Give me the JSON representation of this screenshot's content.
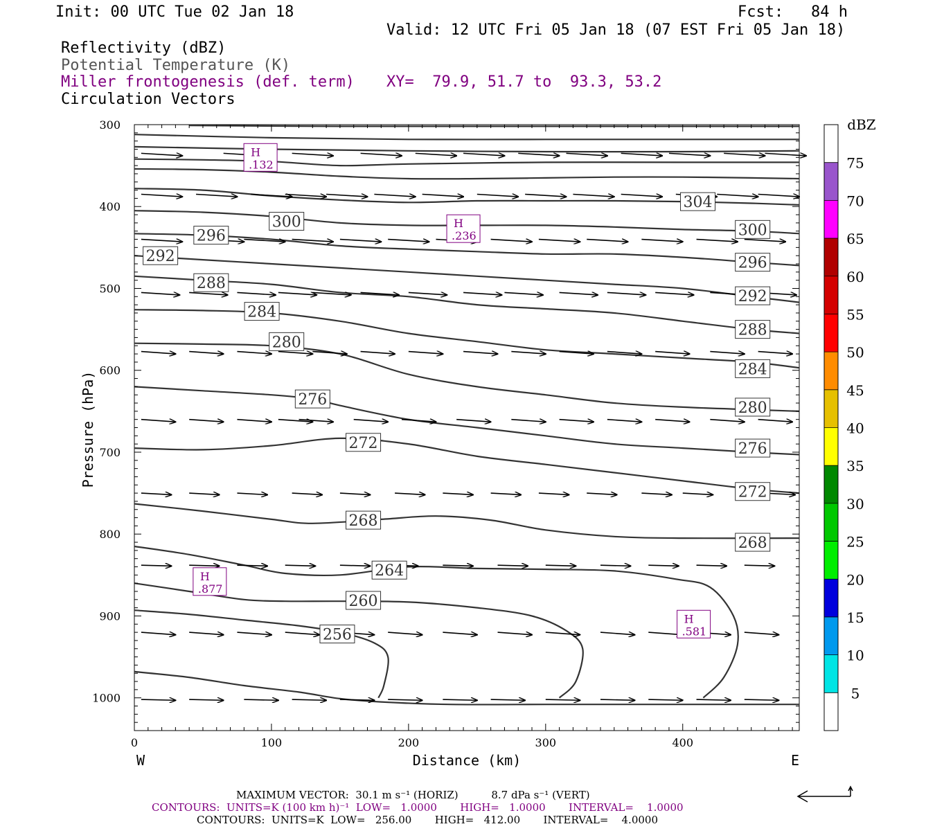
{
  "header": {
    "init": "Init: 00 UTC Tue 02 Jan 18",
    "fcst": "Fcst:   84 h",
    "valid": "Valid: 12 UTC Fri 05 Jan 18 (07 EST Fri 05 Jan 18)",
    "fields": [
      {
        "label": "Reflectivity (dBZ)",
        "color": "#000000"
      },
      {
        "label": "Potential Temperature (K)",
        "color": "#555555"
      },
      {
        "label": "Miller frontogenesis (def. term)",
        "color": "#800080"
      },
      {
        "label": "Circulation Vectors",
        "color": "#000000"
      }
    ],
    "xy": "XY=  79.9, 51.7 to  93.3, 53.2"
  },
  "footer": {
    "max_vector": "MAXIMUM VECTOR:  30.1 m s⁻¹ (HORIZ)          8.7 dPa s⁻¹ (VERT)",
    "contours_fronto": "CONTOURS:  UNITS=K (100 km h)⁻¹  LOW=   1.0000       HIGH=   1.0000       INTERVAL=    1.0000",
    "contours_theta": "CONTOURS:  UNITS=K  LOW=   256.00       HIGH=   412.00       INTERVAL=    4.0000"
  },
  "chart_data": {
    "type": "cross-section",
    "xlabel": "Distance (km)",
    "ylabel": "Pressure (hPa)",
    "xlim": [
      0,
      485
    ],
    "ylim": [
      1040,
      300
    ],
    "x_ticks": [
      0,
      100,
      200,
      300,
      400
    ],
    "y_ticks": [
      300,
      400,
      500,
      600,
      700,
      800,
      900,
      1000
    ],
    "x_end_labels": {
      "left": "W",
      "right": "E"
    },
    "colorbar": {
      "title": "dBZ",
      "levels": [
        5,
        10,
        15,
        20,
        25,
        30,
        35,
        40,
        45,
        50,
        55,
        60,
        65,
        70,
        75
      ],
      "colors": [
        "#ffffff",
        "#00e5e5",
        "#0099ee",
        "#0000dd",
        "#00ee00",
        "#00c800",
        "#008800",
        "#ffff00",
        "#e6c000",
        "#ff8c00",
        "#ff0000",
        "#d40000",
        "#b00000",
        "#ff00ff",
        "#9955cc",
        "#ffffff"
      ]
    },
    "theta_contours": [
      {
        "level": 256,
        "points": [
          [
            0,
            968
          ],
          [
            40,
            975
          ],
          [
            80,
            985
          ],
          [
            120,
            993
          ],
          [
            150,
            1001
          ],
          [
            180,
            1005
          ],
          [
            230,
            1008
          ],
          [
            300,
            1008
          ],
          [
            350,
            1008
          ],
          [
            410,
            1008
          ],
          [
            485,
            1008
          ]
        ],
        "labels": []
      },
      {
        "level": 256,
        "points": [
          [
            0,
            893
          ],
          [
            40,
            898
          ],
          [
            80,
            905
          ],
          [
            120,
            912
          ],
          [
            150,
            920
          ],
          [
            175,
            933
          ],
          [
            185,
            950
          ],
          [
            182,
            985
          ],
          [
            178,
            1000
          ]
        ],
        "labels": [
          [
            148,
            922
          ]
        ]
      },
      {
        "level": 260,
        "points": [
          [
            0,
            860
          ],
          [
            40,
            870
          ],
          [
            80,
            880
          ],
          [
            110,
            882
          ],
          [
            150,
            882
          ],
          [
            200,
            883
          ],
          [
            250,
            890
          ],
          [
            290,
            900
          ],
          [
            315,
            918
          ],
          [
            327,
            940
          ],
          [
            322,
            980
          ],
          [
            310,
            1000
          ]
        ],
        "labels": [
          [
            167,
            881
          ]
        ]
      },
      {
        "level": 264,
        "points": [
          [
            0,
            815
          ],
          [
            40,
            825
          ],
          [
            80,
            838
          ],
          [
            110,
            848
          ],
          [
            150,
            850
          ],
          [
            200,
            840
          ],
          [
            250,
            842
          ],
          [
            300,
            843
          ],
          [
            350,
            845
          ],
          [
            395,
            855
          ],
          [
            420,
            865
          ],
          [
            437,
            900
          ],
          [
            440,
            935
          ],
          [
            430,
            975
          ],
          [
            415,
            1000
          ]
        ],
        "labels": [
          [
            186,
            844
          ]
        ]
      },
      {
        "level": 268,
        "points": [
          [
            0,
            763
          ],
          [
            50,
            772
          ],
          [
            100,
            782
          ],
          [
            130,
            787
          ],
          [
            180,
            782
          ],
          [
            220,
            778
          ],
          [
            260,
            783
          ],
          [
            300,
            795
          ],
          [
            350,
            803
          ],
          [
            400,
            805
          ],
          [
            485,
            805
          ]
        ],
        "labels": [
          [
            167,
            783
          ],
          [
            451,
            810
          ]
        ]
      },
      {
        "level": 272,
        "points": [
          [
            0,
            695
          ],
          [
            50,
            697
          ],
          [
            100,
            692
          ],
          [
            150,
            683
          ],
          [
            200,
            690
          ],
          [
            250,
            705
          ],
          [
            300,
            715
          ],
          [
            350,
            725
          ],
          [
            400,
            735
          ],
          [
            450,
            745
          ],
          [
            485,
            750
          ]
        ],
        "labels": [
          [
            167,
            688
          ],
          [
            451,
            748
          ]
        ]
      },
      {
        "level": 276,
        "points": [
          [
            0,
            620
          ],
          [
            50,
            625
          ],
          [
            100,
            630
          ],
          [
            130,
            635
          ],
          [
            150,
            643
          ],
          [
            200,
            660
          ],
          [
            250,
            670
          ],
          [
            300,
            680
          ],
          [
            350,
            690
          ],
          [
            400,
            695
          ],
          [
            450,
            700
          ],
          [
            485,
            703
          ]
        ],
        "labels": [
          [
            130,
            635
          ],
          [
            451,
            695
          ]
        ]
      },
      {
        "level": 280,
        "points": [
          [
            0,
            567
          ],
          [
            50,
            568
          ],
          [
            100,
            570
          ],
          [
            150,
            580
          ],
          [
            200,
            605
          ],
          [
            250,
            620
          ],
          [
            300,
            630
          ],
          [
            350,
            640
          ],
          [
            400,
            645
          ],
          [
            450,
            648
          ],
          [
            485,
            650
          ]
        ],
        "labels": [
          [
            111,
            565
          ],
          [
            451,
            645
          ]
        ]
      },
      {
        "level": 284,
        "points": [
          [
            0,
            526
          ],
          [
            50,
            527
          ],
          [
            100,
            530
          ],
          [
            150,
            540
          ],
          [
            200,
            555
          ],
          [
            250,
            565
          ],
          [
            300,
            575
          ],
          [
            350,
            580
          ],
          [
            400,
            585
          ],
          [
            450,
            590
          ],
          [
            485,
            597
          ]
        ],
        "labels": [
          [
            93,
            528
          ],
          [
            451,
            598
          ]
        ]
      },
      {
        "level": 288,
        "points": [
          [
            0,
            485
          ],
          [
            50,
            490
          ],
          [
            100,
            495
          ],
          [
            150,
            505
          ],
          [
            200,
            510
          ],
          [
            250,
            520
          ],
          [
            300,
            525
          ],
          [
            350,
            530
          ],
          [
            400,
            540
          ],
          [
            450,
            550
          ],
          [
            485,
            555
          ]
        ],
        "labels": [
          [
            56,
            493
          ],
          [
            451,
            550
          ]
        ]
      },
      {
        "level": 292,
        "points": [
          [
            0,
            460
          ],
          [
            50,
            465
          ],
          [
            100,
            470
          ],
          [
            150,
            475
          ],
          [
            200,
            480
          ],
          [
            250,
            485
          ],
          [
            300,
            490
          ],
          [
            350,
            495
          ],
          [
            400,
            500
          ],
          [
            450,
            510
          ],
          [
            485,
            517
          ]
        ],
        "labels": [
          [
            19,
            460
          ],
          [
            451,
            509
          ]
        ]
      },
      {
        "level": 296,
        "points": [
          [
            0,
            433
          ],
          [
            50,
            435
          ],
          [
            100,
            440
          ],
          [
            150,
            448
          ],
          [
            200,
            452
          ],
          [
            250,
            455
          ],
          [
            300,
            458
          ],
          [
            350,
            458
          ],
          [
            400,
            462
          ],
          [
            450,
            468
          ],
          [
            485,
            472
          ]
        ],
        "labels": [
          [
            56,
            435
          ],
          [
            451,
            468
          ]
        ]
      },
      {
        "level": 300,
        "points": [
          [
            0,
            405
          ],
          [
            50,
            407
          ],
          [
            100,
            412
          ],
          [
            150,
            420
          ],
          [
            200,
            423
          ],
          [
            250,
            423
          ],
          [
            300,
            423
          ],
          [
            350,
            425
          ],
          [
            400,
            428
          ],
          [
            450,
            430
          ],
          [
            485,
            433
          ]
        ],
        "labels": [
          [
            111,
            418
          ],
          [
            451,
            428
          ]
        ]
      },
      {
        "level": 304,
        "points": [
          [
            0,
            378
          ],
          [
            50,
            380
          ],
          [
            100,
            387
          ],
          [
            150,
            392
          ],
          [
            200,
            395
          ],
          [
            250,
            393
          ],
          [
            300,
            393
          ],
          [
            350,
            393
          ],
          [
            400,
            394
          ],
          [
            450,
            396
          ],
          [
            485,
            398
          ]
        ],
        "labels": [
          [
            411,
            394
          ]
        ]
      },
      {
        "level": 308,
        "points": [
          [
            0,
            354
          ],
          [
            50,
            355
          ],
          [
            100,
            358
          ],
          [
            150,
            363
          ],
          [
            200,
            366
          ],
          [
            250,
            366
          ],
          [
            300,
            365
          ],
          [
            350,
            364
          ],
          [
            400,
            364
          ],
          [
            450,
            365
          ],
          [
            485,
            366
          ]
        ],
        "labels": []
      },
      {
        "level": 312,
        "points": [
          [
            0,
            342
          ],
          [
            50,
            343
          ],
          [
            100,
            345
          ],
          [
            150,
            350
          ],
          [
            200,
            348
          ],
          [
            300,
            346
          ],
          [
            400,
            346
          ],
          [
            485,
            346
          ]
        ],
        "labels": []
      },
      {
        "level": 316,
        "points": [
          [
            0,
            327
          ],
          [
            100,
            330
          ],
          [
            200,
            332
          ],
          [
            300,
            333
          ],
          [
            400,
            333
          ],
          [
            485,
            332
          ]
        ],
        "labels": []
      },
      {
        "level": 320,
        "points": [
          [
            0,
            312
          ],
          [
            100,
            316
          ],
          [
            200,
            318
          ],
          [
            300,
            318
          ],
          [
            400,
            318
          ],
          [
            485,
            318
          ]
        ],
        "labels": []
      },
      {
        "level": 324,
        "points": [
          [
            40,
            301
          ],
          [
            150,
            302
          ],
          [
            300,
            302
          ],
          [
            485,
            302
          ]
        ],
        "labels": []
      }
    ],
    "frontogenesis_maxima": [
      {
        "label": "H",
        "value": ".132",
        "x": 92,
        "p": 340
      },
      {
        "label": "H",
        "value": ".236",
        "x": 240,
        "p": 427
      },
      {
        "label": "H",
        "value": ".877",
        "x": 55,
        "p": 858
      },
      {
        "label": "H",
        "value": ".581",
        "x": 408,
        "p": 910
      }
    ],
    "circulation_vectors": [
      {
        "p": 335,
        "x0": [
          5,
          65,
          115,
          165,
          205,
          240,
          280,
          315,
          355,
          390,
          430,
          460
        ],
        "dx": 30,
        "dp": 3
      },
      {
        "p": 385,
        "x0": [
          5,
          45,
          85,
          110,
          140,
          175,
          210,
          250,
          285,
          320,
          355,
          395,
          425,
          455
        ],
        "dx": 30,
        "dp": 3
      },
      {
        "p": 440,
        "x0": [
          5,
          50,
          80,
          115,
          150,
          185,
          220,
          260,
          295,
          330,
          370,
          410,
          445
        ],
        "dx": 30,
        "dp": 3
      },
      {
        "p": 505,
        "x0": [
          5,
          40,
          75,
          105,
          130,
          165,
          200,
          240,
          270,
          310,
          345,
          380,
          420,
          455
        ],
        "dx": 28,
        "dp": 3
      },
      {
        "p": 577,
        "x0": [
          5,
          40,
          75,
          105,
          130,
          165,
          200,
          240,
          275,
          310,
          345,
          380,
          420,
          455
        ],
        "dx": 25,
        "dp": 3
      },
      {
        "p": 660,
        "x0": [
          5,
          40,
          75,
          105,
          120,
          160,
          195,
          235,
          275,
          310,
          345,
          380,
          420,
          455
        ],
        "dx": 25,
        "dp": 3
      },
      {
        "p": 750,
        "x0": [
          5,
          40,
          75,
          115,
          150,
          190,
          225,
          260,
          295,
          330,
          370,
          400,
          440,
          460
        ],
        "dx": 22,
        "dp": 2
      },
      {
        "p": 838,
        "x0": [
          5,
          40,
          75,
          110,
          150,
          185,
          225,
          265,
          300,
          340,
          375,
          410,
          445
        ],
        "dx": 22,
        "dp": 1
      },
      {
        "p": 920,
        "x0": [
          5,
          40,
          75,
          110,
          150,
          185,
          225,
          265,
          300,
          340,
          375,
          410,
          445
        ],
        "dx": 25,
        "dp": 3
      },
      {
        "p": 1002,
        "x0": [
          5,
          40,
          80,
          115,
          150,
          185,
          225,
          260,
          300,
          340,
          375,
          410,
          445
        ],
        "dx": 25,
        "dp": 1
      }
    ]
  }
}
